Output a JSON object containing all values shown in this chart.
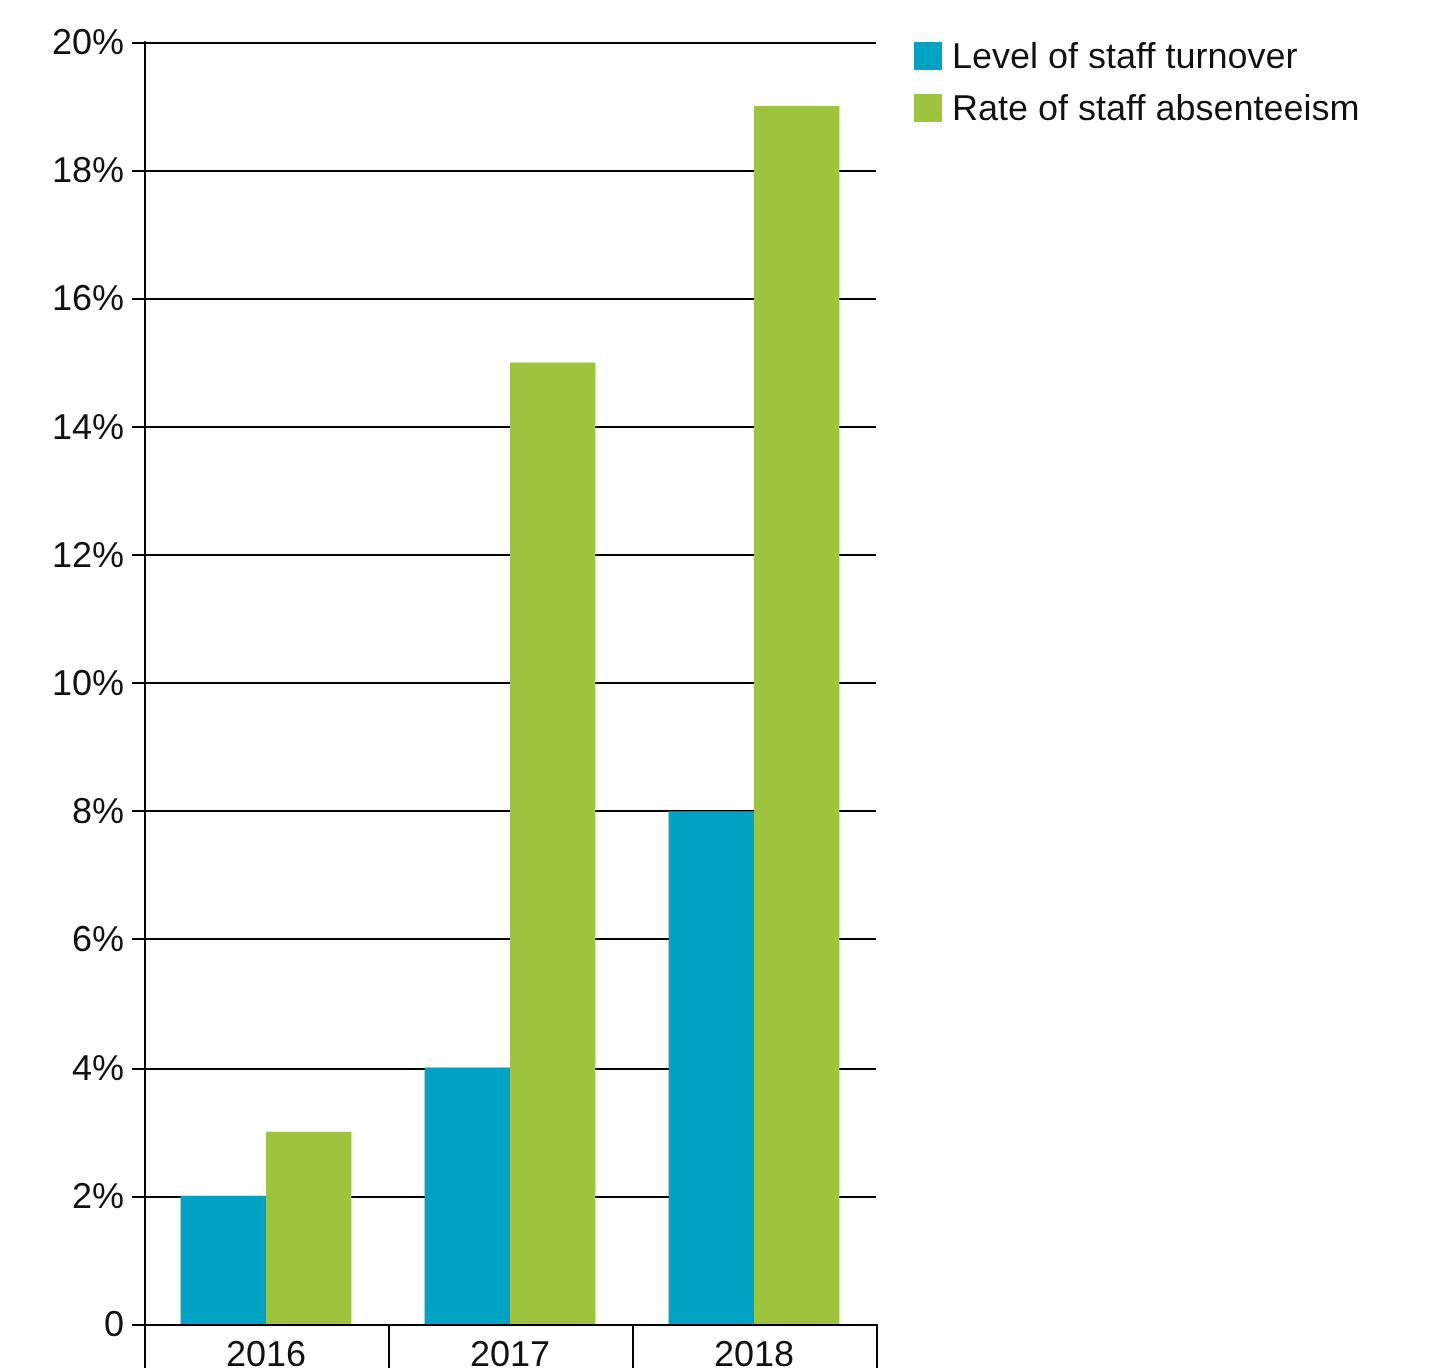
{
  "chart_data": {
    "type": "bar",
    "categories": [
      "2016",
      "2017",
      "2018"
    ],
    "series": [
      {
        "name": "Level of staff turnover",
        "color": "#00a3c4",
        "values": [
          2,
          4,
          8
        ]
      },
      {
        "name": "Rate of staff absenteeism",
        "color": "#9dc43c",
        "values": [
          3,
          15,
          19
        ]
      }
    ],
    "ylim": [
      0,
      20
    ],
    "yticks": [
      {
        "value": 0,
        "label": "0"
      },
      {
        "value": 2,
        "label": "2%"
      },
      {
        "value": 4,
        "label": "4%"
      },
      {
        "value": 6,
        "label": "6%"
      },
      {
        "value": 8,
        "label": "8%"
      },
      {
        "value": 10,
        "label": "10%"
      },
      {
        "value": 12,
        "label": "12%"
      },
      {
        "value": 14,
        "label": "14%"
      },
      {
        "value": 16,
        "label": "16%"
      },
      {
        "value": 18,
        "label": "18%"
      },
      {
        "value": 20,
        "label": "20%"
      }
    ],
    "grid": "y",
    "legend": "top right"
  }
}
